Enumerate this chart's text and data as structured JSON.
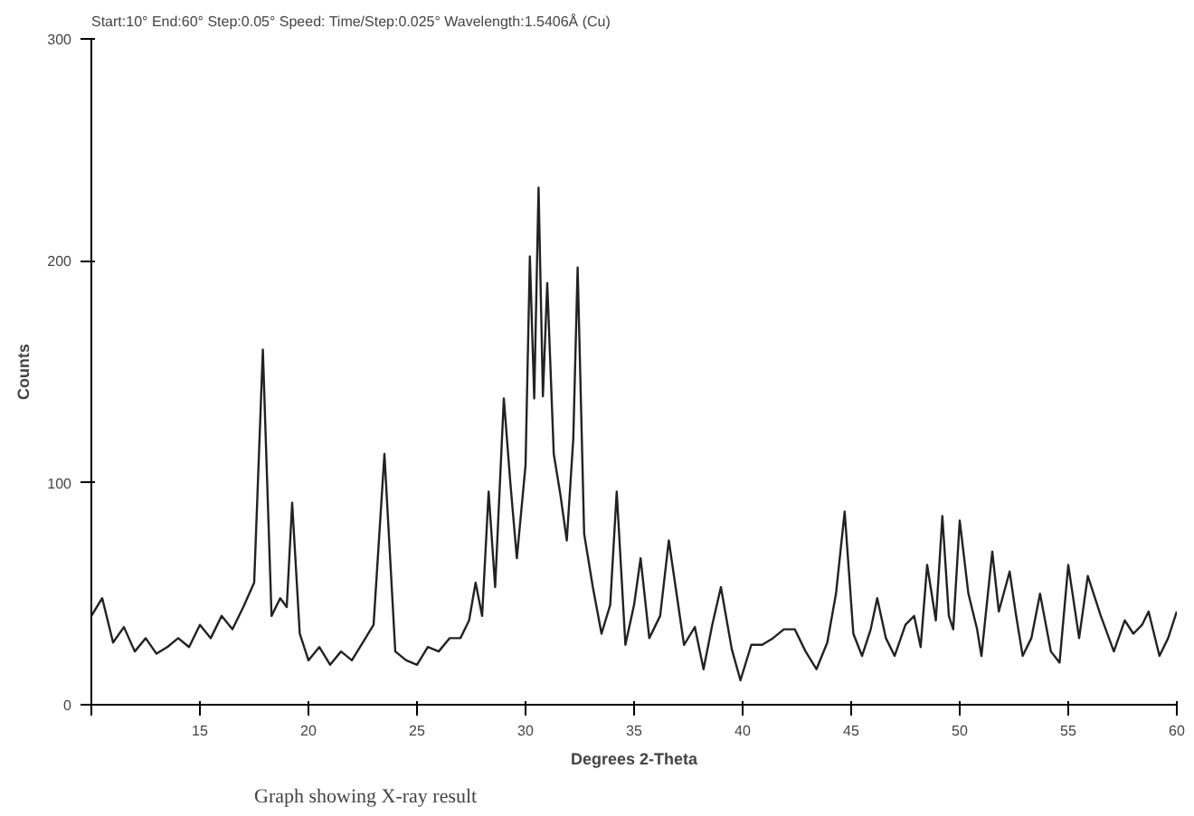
{
  "chart_data": {
    "type": "line",
    "title": "Start:10° End:60° Step:0.05° Speed: Time/Step:0.025° Wavelength:1.5406Å (Cu)",
    "xlabel": "Degrees 2-Theta",
    "ylabel": "Counts",
    "annotations": [
      "Graph showing X-ray result"
    ],
    "x": [
      10,
      10.5,
      11,
      11.5,
      12,
      12.5,
      13,
      13.5,
      14,
      14.5,
      15,
      15.5,
      16,
      16.5,
      17,
      17.5,
      17.9,
      18.3,
      18.7,
      19.0,
      19.25,
      19.6,
      20,
      20.5,
      21,
      21.5,
      22,
      22.5,
      23,
      23.5,
      24,
      24.5,
      25,
      25.5,
      26,
      26.5,
      27,
      27.4,
      27.7,
      28.0,
      28.3,
      28.6,
      29.0,
      29.3,
      29.6,
      30.0,
      30.2,
      30.4,
      30.6,
      30.8,
      31.0,
      31.3,
      31.6,
      31.9,
      32.2,
      32.4,
      32.7,
      33.1,
      33.5,
      33.9,
      34.2,
      34.6,
      35.0,
      35.3,
      35.7,
      36.2,
      36.6,
      37.3,
      37.8,
      38.2,
      38.6,
      39.0,
      39.5,
      39.9,
      40.4,
      40.9,
      41.4,
      41.9,
      42.4,
      42.9,
      43.4,
      43.9,
      44.3,
      44.7,
      45.1,
      45.5,
      45.9,
      46.2,
      46.6,
      47.0,
      47.5,
      47.9,
      48.2,
      48.5,
      48.9,
      49.2,
      49.5,
      49.7,
      50.0,
      50.4,
      50.8,
      51.0,
      51.5,
      51.8,
      52.3,
      52.6,
      52.9,
      53.3,
      53.7,
      54.2,
      54.6,
      55.0,
      55.5,
      55.9,
      56.5,
      57.1,
      57.6,
      58.0,
      58.4,
      58.7,
      59.2,
      59.6,
      60
    ],
    "series": [
      {
        "color": "#222222",
        "values": [
          40,
          48,
          28,
          35,
          24,
          30,
          23,
          26,
          30,
          26,
          36,
          30,
          40,
          34,
          44,
          55,
          160,
          40,
          48,
          44,
          91,
          32,
          20,
          26,
          18,
          24,
          20,
          28,
          36,
          113,
          24,
          20,
          18,
          26,
          24,
          30,
          30,
          38,
          55,
          40,
          96,
          53,
          138,
          100,
          66,
          108,
          202,
          138,
          233,
          139,
          190,
          113,
          95,
          74,
          120,
          197,
          77,
          53,
          32,
          45,
          96,
          27,
          45,
          66,
          30,
          40,
          74,
          27,
          35,
          16,
          36,
          53,
          25,
          11,
          27,
          27,
          30,
          34,
          34,
          24,
          16,
          28,
          50,
          87,
          32,
          22,
          34,
          48,
          30,
          22,
          36,
          40,
          26,
          63,
          38,
          85,
          40,
          34,
          83,
          50,
          34,
          22,
          69,
          42,
          60,
          40,
          22,
          30,
          50,
          24,
          19,
          63,
          30,
          58,
          40,
          24,
          38,
          32,
          36,
          42,
          22,
          30,
          42
        ]
      }
    ],
    "xlim": [
      10,
      60
    ],
    "ylim": [
      0,
      300
    ],
    "xticks": [
      {
        "value": 10,
        "label": null
      },
      15,
      20,
      25,
      30,
      35,
      40,
      45,
      50,
      55,
      60
    ],
    "yticks": [
      0,
      100,
      200,
      300
    ],
    "line_style": "solid"
  }
}
